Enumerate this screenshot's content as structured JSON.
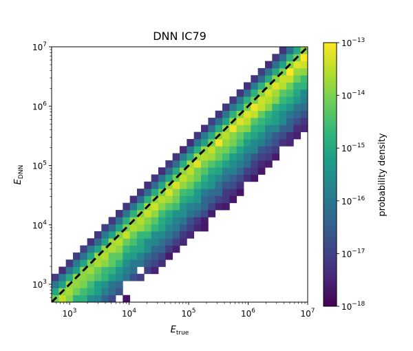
{
  "chart_data": {
    "type": "heatmap",
    "title": "DNN IC79",
    "xlabel": "E",
    "xlabel_sub": "true",
    "ylabel": "E",
    "ylabel_sub": "DNN",
    "x_scale": "log",
    "y_scale": "log",
    "xlim": [
      500,
      10000000
    ],
    "ylim": [
      500,
      10000000
    ],
    "x_ticks": [
      {
        "value": 1000,
        "base": "10",
        "exp": "3"
      },
      {
        "value": 10000,
        "base": "10",
        "exp": "4"
      },
      {
        "value": 100000,
        "base": "10",
        "exp": "5"
      },
      {
        "value": 1000000,
        "base": "10",
        "exp": "6"
      },
      {
        "value": 10000000,
        "base": "10",
        "exp": "7"
      }
    ],
    "y_ticks": [
      {
        "value": 1000,
        "base": "10",
        "exp": "3"
      },
      {
        "value": 10000,
        "base": "10",
        "exp": "4"
      },
      {
        "value": 100000,
        "base": "10",
        "exp": "5"
      },
      {
        "value": 1000000,
        "base": "10",
        "exp": "6"
      },
      {
        "value": 10000000,
        "base": "10",
        "exp": "7"
      }
    ],
    "reference_line": {
      "style": "dashed",
      "color": "#000000",
      "relation": "y = x"
    },
    "bins_per_axis": 36,
    "colormap": [
      "#440154",
      "#482878",
      "#3e4989",
      "#31688e",
      "#26828e",
      "#1f9e89",
      "#35b779",
      "#6ece58",
      "#b5de2b",
      "#fde725"
    ],
    "colorbar": {
      "label": "probability density",
      "scale": "log",
      "range": [
        1e-18,
        1e-13
      ],
      "ticks": [
        {
          "value": 1e-13,
          "base": "10",
          "exp": "−13"
        },
        {
          "value": 1e-14,
          "base": "10",
          "exp": "−14"
        },
        {
          "value": 1e-15,
          "base": "10",
          "exp": "−15"
        },
        {
          "value": 1e-16,
          "base": "10",
          "exp": "−16"
        },
        {
          "value": 1e-17,
          "base": "10",
          "exp": "−17"
        },
        {
          "value": 1e-18,
          "base": "10",
          "exp": "−18"
        }
      ]
    }
  }
}
